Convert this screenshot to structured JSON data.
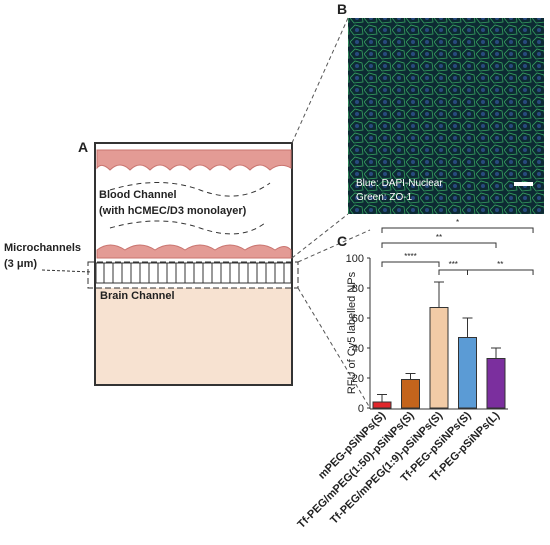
{
  "chart_data": {
    "type": "bar",
    "y_label": "RFU of Cy5 labelled NPs",
    "categories": [
      "mPEG-pSiNPs(S)",
      "Tf-PEG/mPEG(1:50)-pSiNPs(S)",
      "Tf-PEG/mPEG(1:9)-pSiNPs(S)",
      "Tf-PEG-pSiNPs(S)",
      "Tf-PEG-pSiNPs(L)"
    ],
    "values": [
      4,
      19,
      67,
      47,
      33
    ],
    "errors": [
      5,
      4,
      17,
      13,
      7
    ],
    "colors": [
      "#e0262b",
      "#c4641c",
      "#f2cba6",
      "#5b9bd5",
      "#7b2f9e"
    ],
    "ylim": [
      0,
      100
    ],
    "yticks": [
      0,
      20,
      40,
      60,
      80,
      100
    ],
    "annotations": [
      "*",
      "**",
      "****",
      "***",
      "**"
    ]
  },
  "panels": {
    "a": {
      "label": "A",
      "blood": "Blood Channel",
      "monolayer": "(with hCMEC/D3 monolayer)",
      "micro": "Microchannels",
      "micro_size": "(3 μm)",
      "brain": "Brain Channel"
    },
    "b": {
      "label": "B",
      "stain1": "Blue: DAPI-Nuclear",
      "stain2": "Green: ZO-1"
    },
    "c": {
      "label": "C"
    }
  }
}
